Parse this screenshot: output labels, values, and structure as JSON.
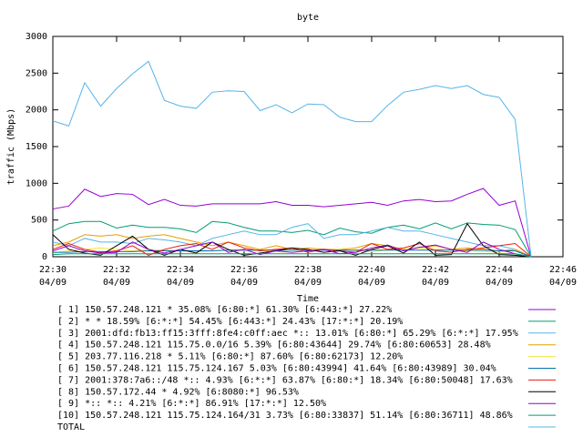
{
  "chart_data": {
    "type": "line",
    "title": "byte",
    "x_label": "Time",
    "y_label": "traffic (Mbps)",
    "xlim": [
      1350,
      1366
    ],
    "ylim": [
      0,
      3000
    ],
    "xticks": [
      {
        "value": 1350,
        "label": "22:30",
        "date": "04/09"
      },
      {
        "value": 1352,
        "label": "22:32",
        "date": "04/09"
      },
      {
        "value": 1354,
        "label": "22:34",
        "date": "04/09"
      },
      {
        "value": 1356,
        "label": "22:36",
        "date": "04/09"
      },
      {
        "value": 1358,
        "label": "22:38",
        "date": "04/09"
      },
      {
        "value": 1360,
        "label": "22:40",
        "date": "04/09"
      },
      {
        "value": 1362,
        "label": "22:42",
        "date": "04/09"
      },
      {
        "value": 1364,
        "label": "22:44",
        "date": "04/09"
      },
      {
        "value": 1366,
        "label": "22:46",
        "date": "04/09"
      }
    ],
    "yticks": [
      0,
      500,
      1000,
      1500,
      2000,
      2500,
      3000
    ],
    "x": [
      1350,
      1350.5,
      1351,
      1351.5,
      1352,
      1352.5,
      1353,
      1353.5,
      1354,
      1354.5,
      1355,
      1355.5,
      1356,
      1356.5,
      1357,
      1357.5,
      1358,
      1358.5,
      1359,
      1359.5,
      1360,
      1360.5,
      1361,
      1361.5,
      1362,
      1362.5,
      1363,
      1363.5,
      1364,
      1364.5,
      1365
    ],
    "series": [
      {
        "name": "[ 1] 150.57.248.121 * 35.08%  [6:80:*] 61.30% [6:443:*] 27.22%",
        "color": "#9400d3",
        "values": [
          650,
          690,
          920,
          820,
          860,
          850,
          710,
          780,
          700,
          690,
          720,
          720,
          720,
          720,
          750,
          700,
          700,
          680,
          700,
          720,
          740,
          700,
          760,
          780,
          750,
          760,
          850,
          930,
          700,
          760,
          0
        ]
      },
      {
        "name": "[ 2] * * 18.59%  [6:*:*] 54.45% [6:443:*] 24.43% [17:*:*] 20.19%",
        "color": "#009e73",
        "values": [
          350,
          450,
          480,
          480,
          390,
          430,
          400,
          400,
          380,
          330,
          480,
          460,
          400,
          350,
          350,
          330,
          360,
          300,
          390,
          340,
          320,
          400,
          430,
          380,
          460,
          380,
          460,
          440,
          430,
          370,
          0
        ]
      },
      {
        "name": "[ 3] 2001:dfd:fb13:ff15:3fff:8fe4:c0ff:aec *:: 13.01%  [6:80:*] 65.29% [6:*:*] 17.95%",
        "color": "#56b4e9",
        "values": [
          200,
          150,
          250,
          200,
          200,
          180,
          250,
          230,
          200,
          150,
          250,
          300,
          350,
          300,
          300,
          400,
          450,
          250,
          300,
          300,
          350,
          400,
          350,
          350,
          300,
          250,
          200,
          150,
          150,
          100,
          0
        ]
      },
      {
        "name": "[ 4] 150.57.248.121 115.75.0.0/16 5.39%  [6:80:43644] 29.74% [6:80:60653] 28.48%",
        "color": "#e69f00",
        "values": [
          150,
          200,
          300,
          280,
          300,
          250,
          280,
          300,
          250,
          200,
          150,
          200,
          150,
          100,
          150,
          100,
          120,
          100,
          100,
          120,
          180,
          150,
          100,
          120,
          150,
          100,
          120,
          100,
          80,
          100,
          0
        ]
      },
      {
        "name": "[ 5] 203.77.116.218 * 5.11%  [6:80:*] 87.60% [6:80:62173] 12.20%",
        "color": "#f0e442",
        "values": [
          50,
          80,
          100,
          120,
          100,
          80,
          100,
          90,
          80,
          70,
          80,
          90,
          100,
          80,
          70,
          60,
          80,
          90,
          100,
          80,
          70,
          90,
          100,
          120,
          100,
          90,
          80,
          70,
          60,
          80,
          0
        ]
      },
      {
        "name": "[ 6] 150.57.248.121 115.75.124.167 5.03%  [6:80:43994] 41.64% [6:80:43989] 30.04%",
        "color": "#0072b2",
        "values": [
          60,
          60,
          70,
          70,
          70,
          70,
          80,
          80,
          80,
          80,
          80,
          90,
          90,
          90,
          90,
          90,
          90,
          90,
          90,
          90,
          90,
          90,
          90,
          90,
          90,
          90,
          90,
          90,
          80,
          80,
          0
        ]
      },
      {
        "name": "[ 7] 2001:378:7a6::/48 *:: 4.93%  [6:*:*] 63.87% [6:80:*] 18.34% [6:80:50048] 17.63%",
        "color": "#e51e10",
        "values": [
          100,
          180,
          100,
          60,
          80,
          150,
          20,
          100,
          150,
          180,
          100,
          200,
          120,
          80,
          100,
          120,
          60,
          100,
          80,
          60,
          180,
          100,
          120,
          180,
          80,
          60,
          100,
          120,
          150,
          180,
          0
        ]
      },
      {
        "name": "[ 8] 150.57.172.44 * 4.92%  [6:8080:*] 96.53%",
        "color": "#000000",
        "values": [
          300,
          100,
          50,
          20,
          150,
          280,
          100,
          20,
          100,
          50,
          200,
          100,
          20,
          50,
          80,
          120,
          100,
          60,
          80,
          20,
          100,
          150,
          50,
          200,
          20,
          30,
          450,
          150,
          30,
          20,
          0
        ]
      },
      {
        "name": "[ 9] *:: *:: 4.21%  [6:*:*] 86.91% [17:*:*] 12.50%",
        "color": "#9400d3",
        "values": [
          80,
          150,
          80,
          50,
          60,
          200,
          100,
          50,
          100,
          150,
          200,
          60,
          100,
          30,
          80,
          60,
          80,
          100,
          40,
          60,
          120,
          160,
          80,
          130,
          160,
          100,
          60,
          200,
          100,
          40,
          0
        ]
      },
      {
        "name": "[10] 150.57.248.121 115.75.124.164/31 3.73%  [6:80:33837] 51.14% [6:80:36711] 48.86%",
        "color": "#009e73",
        "values": [
          30,
          40,
          40,
          40,
          40,
          40,
          40,
          40,
          40,
          40,
          40,
          40,
          40,
          40,
          40,
          40,
          40,
          40,
          40,
          40,
          40,
          40,
          40,
          40,
          40,
          40,
          40,
          40,
          40,
          40,
          0
        ]
      },
      {
        "name": "TOTAL",
        "color": "#56b4e9",
        "values": [
          1850,
          1780,
          2370,
          2050,
          2290,
          2490,
          2660,
          2130,
          2050,
          2020,
          2240,
          2260,
          2250,
          1990,
          2070,
          1960,
          2080,
          2070,
          1900,
          1840,
          1840,
          2060,
          2240,
          2280,
          2330,
          2290,
          2330,
          2210,
          2170,
          1870,
          0
        ]
      }
    ]
  }
}
